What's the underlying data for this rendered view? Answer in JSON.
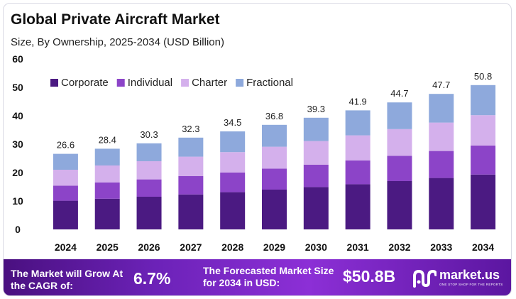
{
  "header": {
    "title": "Global Private Aircraft Market",
    "subtitle": "Size, By Ownership, 2025-2034 (USD Billion)"
  },
  "chart_data": {
    "type": "bar",
    "stacked": true,
    "title": "Global Private Aircraft Market",
    "subtitle": "Size, By Ownership, 2025-2034 (USD Billion)",
    "xlabel": "",
    "ylabel": "",
    "ylim": [
      0,
      60
    ],
    "yticks": [
      0,
      10,
      20,
      30,
      40,
      50,
      60
    ],
    "grid": false,
    "legend_position": "top-left",
    "categories": [
      "2024",
      "2025",
      "2026",
      "2027",
      "2028",
      "2029",
      "2030",
      "2031",
      "2032",
      "2033",
      "2034"
    ],
    "totals": [
      26.6,
      28.4,
      30.3,
      32.3,
      34.5,
      36.8,
      39.3,
      41.9,
      44.7,
      47.7,
      50.8
    ],
    "total_labels": [
      "26.6",
      "28.4",
      "30.3",
      "32.3",
      "34.5",
      "36.8",
      "39.3",
      "41.9",
      "44.7",
      "47.7",
      "50.8"
    ],
    "series": [
      {
        "name": "Corporate",
        "color": "#4b1a82",
        "values": [
          10.1,
          10.8,
          11.5,
          12.3,
          13.1,
          14.0,
          14.9,
          15.9,
          17.0,
          18.1,
          19.3
        ]
      },
      {
        "name": "Individual",
        "color": "#8c44c8",
        "values": [
          5.3,
          5.7,
          6.1,
          6.5,
          6.9,
          7.4,
          7.9,
          8.4,
          8.9,
          9.5,
          10.2
        ]
      },
      {
        "name": "Charter",
        "color": "#d4b0ec",
        "values": [
          5.6,
          6.0,
          6.4,
          6.8,
          7.2,
          7.7,
          8.3,
          8.8,
          9.4,
          10.0,
          10.7
        ]
      },
      {
        "name": "Fractional",
        "color": "#8ea9dc",
        "values": [
          5.6,
          5.9,
          6.3,
          6.7,
          7.3,
          7.7,
          8.2,
          8.8,
          9.4,
          10.1,
          10.6
        ]
      }
    ]
  },
  "footer": {
    "cagr_label": "The Market will Grow At the CAGR of:",
    "cagr_value": "6.7%",
    "forecast_label": "The Forecasted Market Size for 2034 in USD:",
    "forecast_value": "$50.8B",
    "brand_name": "market.us",
    "brand_tagline": "ONE STOP SHOP FOR THE REPORTS"
  }
}
